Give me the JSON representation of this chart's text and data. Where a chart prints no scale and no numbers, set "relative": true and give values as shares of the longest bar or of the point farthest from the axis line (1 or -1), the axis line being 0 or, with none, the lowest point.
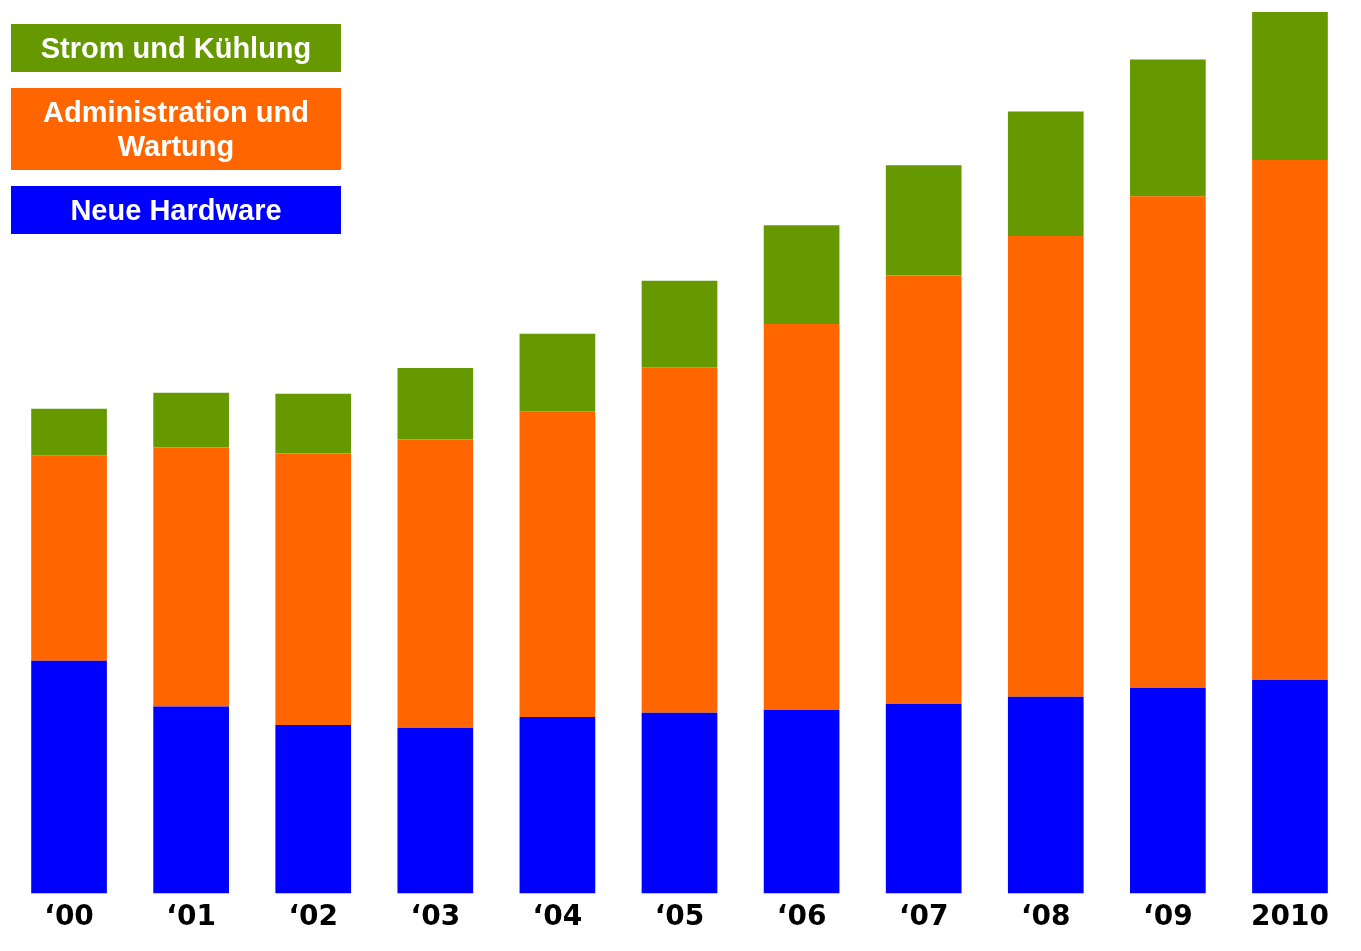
{
  "chart_data": {
    "type": "bar",
    "stacked": true,
    "relative": true,
    "legend": "top left",
    "grid": false,
    "categories": [
      "‘00",
      "‘01",
      "‘02",
      "‘03",
      "‘04",
      "‘05",
      "‘06",
      "‘07",
      "‘08",
      "‘09",
      "2010"
    ],
    "series": [
      {
        "name": "Neue Hardware",
        "color": "#0000ff",
        "values": [
          0.264,
          0.212,
          0.191,
          0.188,
          0.2,
          0.205,
          0.208,
          0.215,
          0.223,
          0.233,
          0.242
        ]
      },
      {
        "name": "Administration und Wartung",
        "color": "#ff6600",
        "values": [
          0.233,
          0.294,
          0.308,
          0.327,
          0.347,
          0.392,
          0.438,
          0.486,
          0.523,
          0.558,
          0.59
        ]
      },
      {
        "name": "Strom und Kühlung",
        "color": "#669900",
        "values": [
          0.053,
          0.062,
          0.068,
          0.081,
          0.088,
          0.098,
          0.112,
          0.125,
          0.141,
          0.155,
          0.168
        ]
      }
    ]
  }
}
